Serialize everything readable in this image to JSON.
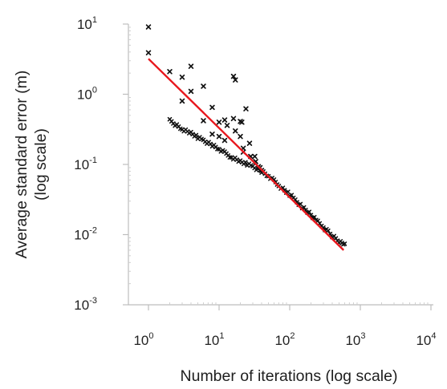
{
  "chart_data": {
    "type": "scatter",
    "title": "",
    "xlabel": "Number of iterations (log scale)",
    "ylabel_line1": "Average standard error (m)",
    "ylabel_line2": "(log scale)",
    "x_scale": "log",
    "y_scale": "log",
    "xlim": [
      1,
      10000
    ],
    "ylim": [
      0.001,
      10
    ],
    "grid": false,
    "legend": "none",
    "x_ticks": [
      {
        "base": "10",
        "exp": "0",
        "value": 1
      },
      {
        "base": "10",
        "exp": "1",
        "value": 10
      },
      {
        "base": "10",
        "exp": "2",
        "value": 100
      },
      {
        "base": "10",
        "exp": "3",
        "value": 1000
      },
      {
        "base": "10",
        "exp": "4",
        "value": 10000
      }
    ],
    "y_ticks": [
      {
        "base": "10",
        "exp": "1",
        "value": 10
      },
      {
        "base": "10",
        "exp": "0",
        "value": 1
      },
      {
        "base": "10",
        "exp": "-1",
        "value": 0.1
      },
      {
        "base": "10",
        "exp": "-2",
        "value": 0.01
      },
      {
        "base": "10",
        "exp": "-3",
        "value": 0.001
      }
    ],
    "colors": {
      "points": "#111111",
      "fit_line": "#e8171d",
      "axis": "#bdbdbd",
      "text": "#222222"
    },
    "series": [
      {
        "kind": "scatter",
        "marker": "x",
        "points": [
          [
            1,
            9.1
          ],
          [
            1,
            3.9
          ],
          [
            2,
            2.1
          ],
          [
            3,
            1.75
          ],
          [
            3,
            0.8
          ],
          [
            4,
            2.5
          ],
          [
            4,
            1.1
          ],
          [
            6,
            1.3
          ],
          [
            6,
            0.42
          ],
          [
            8,
            0.65
          ],
          [
            8,
            0.27
          ],
          [
            10,
            0.4
          ],
          [
            10,
            0.25
          ],
          [
            12,
            0.43
          ],
          [
            12,
            0.22
          ],
          [
            13,
            0.36
          ],
          [
            16,
            1.8
          ],
          [
            16,
            0.45
          ],
          [
            17,
            1.6
          ],
          [
            17,
            0.3
          ],
          [
            20,
            0.25
          ],
          [
            20,
            0.41
          ],
          [
            21,
            0.4
          ],
          [
            22,
            0.17
          ],
          [
            22,
            0.15
          ],
          [
            24,
            0.62
          ],
          [
            27,
            0.2
          ],
          [
            28,
            0.13
          ],
          [
            32,
            0.13
          ],
          [
            33,
            0.11
          ],
          [
            36,
            0.093
          ],
          [
            38,
            0.09
          ],
          [
            40,
            0.082
          ]
        ],
        "dense_trace": {
          "x_from": 2,
          "x_to": 600,
          "points": [
            [
              2,
              0.42
            ],
            [
              3,
              0.32
            ],
            [
              4,
              0.28
            ],
            [
              5,
              0.24
            ],
            [
              6,
              0.22
            ],
            [
              8,
              0.19
            ],
            [
              10,
              0.165
            ],
            [
              12,
              0.145
            ],
            [
              15,
              0.128
            ],
            [
              20,
              0.11
            ],
            [
              25,
              0.1
            ],
            [
              30,
              0.093
            ],
            [
              40,
              0.08
            ],
            [
              50,
              0.068
            ],
            [
              60,
              0.058
            ],
            [
              70,
              0.05
            ],
            [
              80,
              0.045
            ],
            [
              100,
              0.037
            ],
            [
              120,
              0.031
            ],
            [
              150,
              0.025
            ],
            [
              200,
              0.019
            ],
            [
              250,
              0.015
            ],
            [
              300,
              0.0128
            ],
            [
              350,
              0.011
            ],
            [
              400,
              0.0095
            ],
            [
              450,
              0.0087
            ],
            [
              500,
              0.008
            ],
            [
              550,
              0.0076
            ],
            [
              600,
              0.0074
            ]
          ]
        }
      },
      {
        "kind": "fit_line",
        "from": [
          1,
          3.2
        ],
        "to": [
          580,
          0.006
        ]
      }
    ]
  }
}
